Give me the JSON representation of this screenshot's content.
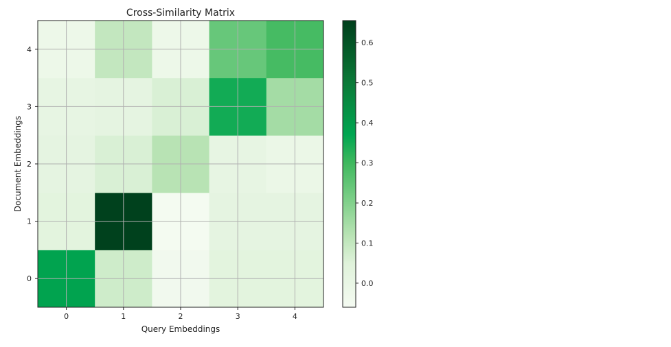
{
  "chart_data": {
    "type": "heatmap",
    "title": "Cross-Similarity Matrix",
    "xlabel": "Query Embeddings",
    "ylabel": "Document Embeddings",
    "x_ticks": [
      "0",
      "1",
      "2",
      "3",
      "4"
    ],
    "y_ticks": [
      "0",
      "1",
      "2",
      "3",
      "4"
    ],
    "y_origin": "lower",
    "values": [
      [
        0.38,
        0.08,
        -0.04,
        0.03,
        0.03
      ],
      [
        0.03,
        0.65,
        -0.055,
        0.02,
        0.02
      ],
      [
        0.02,
        0.06,
        0.12,
        0.01,
        -0.01
      ],
      [
        0.01,
        0.02,
        0.06,
        0.35,
        0.15
      ],
      [
        -0.02,
        0.1,
        -0.02,
        0.24,
        0.29
      ]
    ],
    "grid": true,
    "colorbar": {
      "range": [
        -0.06,
        0.655
      ],
      "ticks": [
        "0.0",
        "0.1",
        "0.2",
        "0.3",
        "0.4",
        "0.5",
        "0.6"
      ],
      "colormap_stops": [
        {
          "v": -0.06,
          "c": "#f5fbf2"
        },
        {
          "v": 0.05,
          "c": "#dff2da"
        },
        {
          "v": 0.12,
          "c": "#b8e3b4"
        },
        {
          "v": 0.2,
          "c": "#82d18c"
        },
        {
          "v": 0.3,
          "c": "#3fb85e"
        },
        {
          "v": 0.37,
          "c": "#00a651"
        },
        {
          "v": 0.5,
          "c": "#0b7a38"
        },
        {
          "v": 0.655,
          "c": "#003f1c"
        }
      ]
    }
  }
}
